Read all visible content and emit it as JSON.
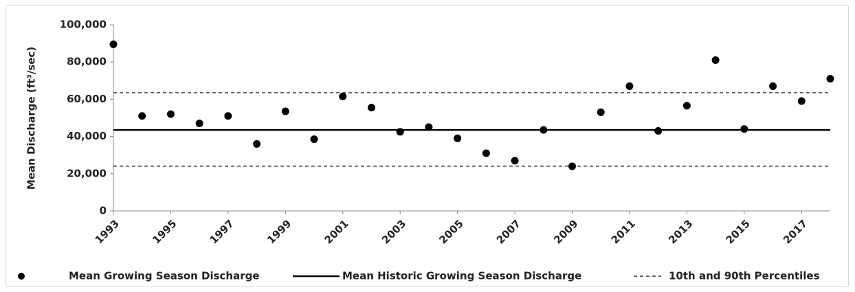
{
  "chart_data": {
    "type": "scatter",
    "y_label": "Mean Discharge  (ft³/sec)",
    "x": [
      1993,
      1994,
      1995,
      1996,
      1997,
      1998,
      1999,
      2000,
      2001,
      2002,
      2003,
      2004,
      2005,
      2006,
      2007,
      2008,
      2009,
      2010,
      2011,
      2012,
      2013,
      2014,
      2015,
      2016,
      2017,
      2018
    ],
    "series": [
      {
        "name": "Mean Growing Season Discharge",
        "color": "#000000",
        "values": [
          89500,
          51000,
          52000,
          47000,
          51000,
          36000,
          53500,
          38500,
          61500,
          55500,
          42500,
          45000,
          39000,
          31000,
          27000,
          43500,
          24000,
          53000,
          67000,
          43000,
          56500,
          81000,
          44000,
          67000,
          59000,
          71000
        ]
      }
    ],
    "reference_lines": [
      {
        "name": "Mean Historic Growing Season Discharge",
        "values": [
          43500
        ],
        "style": "solid",
        "color": "#000000"
      },
      {
        "name": "10th and 90th Percentiles",
        "values": [
          24000,
          63500
        ],
        "style": "dashed",
        "color": "#000000"
      }
    ],
    "xlim": [
      1993,
      2018
    ],
    "xticks": [
      1993,
      1995,
      1997,
      1999,
      2001,
      2003,
      2005,
      2007,
      2009,
      2011,
      2013,
      2015,
      2017
    ],
    "ylim": [
      0,
      100000
    ],
    "yticks": [
      0,
      {
        "value": 20000,
        "label": "20,000"
      },
      {
        "value": 40000,
        "label": "40,000"
      },
      {
        "value": 60000,
        "label": "60,000"
      },
      {
        "value": 80000,
        "label": "80,000"
      },
      {
        "value": 100000,
        "label": "100,000"
      }
    ],
    "grid": false,
    "legend": "bottom"
  }
}
